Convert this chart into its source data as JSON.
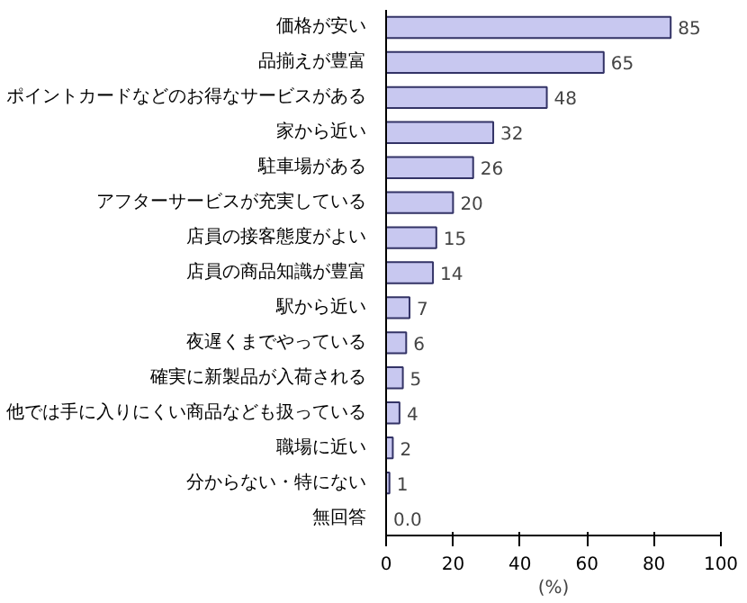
{
  "chart_data": {
    "type": "bar",
    "orientation": "horizontal",
    "xlabel": "(%)",
    "categories": [
      "価格が安い",
      "品揃えが豊富",
      "ポイントカードなどのお得なサービスがある",
      "家から近い",
      "駐車場がある",
      "アフターサービスが充実している",
      "店員の接客態度がよい",
      "店員の商品知識が豊富",
      "駅から近い",
      "夜遅くまでやっている",
      "確実に新製品が入荷される",
      "他では手に入りにくい商品なども扱っている",
      "職場に近い",
      "分からない・特にない",
      "無回答"
    ],
    "values": [
      85,
      65,
      48,
      32,
      26,
      20,
      15,
      14,
      7,
      6,
      5,
      4,
      2,
      1,
      0.0
    ],
    "value_labels": [
      "85",
      "65",
      "48",
      "32",
      "26",
      "20",
      "15",
      "14",
      "7",
      "6",
      "5",
      "4",
      "2",
      "1",
      "0.0"
    ],
    "color": "#c8c8f0",
    "xlim": [
      0,
      100
    ],
    "xticks": [
      0,
      20,
      40,
      60,
      80,
      100
    ],
    "grid": false
  }
}
